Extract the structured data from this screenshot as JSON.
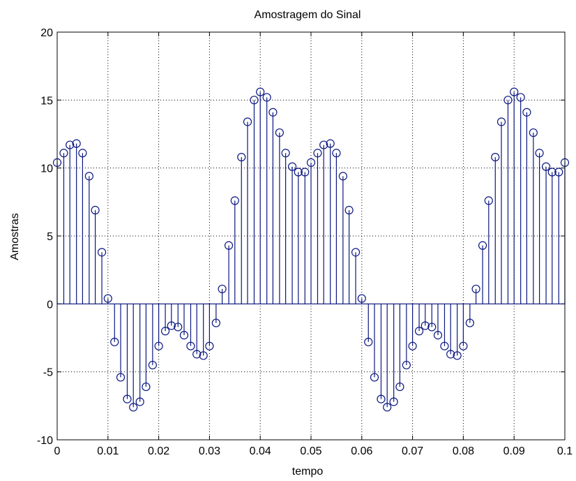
{
  "chart_data": {
    "type": "stem",
    "title": "Amostragem do Sinal",
    "xlabel": "tempo",
    "ylabel": "Amostras",
    "xlim": [
      0,
      0.1
    ],
    "ylim": [
      -10,
      20
    ],
    "xticks": [
      0,
      0.01,
      0.02,
      0.03,
      0.04,
      0.05,
      0.06,
      0.07,
      0.08,
      0.09,
      0.1
    ],
    "xtick_labels": [
      "0",
      "0.01",
      "0.02",
      "0.03",
      "0.04",
      "0.05",
      "0.06",
      "0.07",
      "0.08",
      "0.09",
      "0.1"
    ],
    "yticks": [
      -10,
      -5,
      0,
      5,
      10,
      15,
      20
    ],
    "ytick_labels": [
      "-10",
      "-5",
      "0",
      "5",
      "10",
      "15",
      "20"
    ],
    "grid": true,
    "line_color": "#0b1780",
    "marker": "circle",
    "x": [
      0,
      0.0013,
      0.0025,
      0.0038,
      0.005,
      0.0063,
      0.0075,
      0.0088,
      0.01,
      0.0113,
      0.0125,
      0.0138,
      0.015,
      0.0163,
      0.0175,
      0.0188,
      0.02,
      0.0213,
      0.0225,
      0.0238,
      0.025,
      0.0263,
      0.0275,
      0.0288,
      0.03,
      0.0313,
      0.0325,
      0.0338,
      0.035,
      0.0363,
      0.0375,
      0.0388,
      0.04,
      0.0413,
      0.0425,
      0.0438,
      0.045,
      0.0463,
      0.0475,
      0.0488,
      0.05,
      0.0513,
      0.0525,
      0.0538,
      0.055,
      0.0563,
      0.0575,
      0.0588,
      0.06,
      0.0613,
      0.0625,
      0.0638,
      0.065,
      0.0663,
      0.0675,
      0.0688,
      0.07,
      0.0713,
      0.0725,
      0.0738,
      0.075,
      0.0763,
      0.0775,
      0.0788,
      0.08,
      0.0813,
      0.0825,
      0.0838,
      0.085,
      0.0863,
      0.0875,
      0.0888,
      0.09,
      0.0913,
      0.0925,
      0.0938,
      0.095,
      0.0963,
      0.0975,
      0.0988,
      0.1
    ],
    "y": [
      10.4,
      11.1,
      11.7,
      11.8,
      11.1,
      9.4,
      6.9,
      3.8,
      0.4,
      -2.8,
      -5.4,
      -7.0,
      -7.6,
      -7.2,
      -6.1,
      -4.5,
      -3.1,
      -2.0,
      -1.6,
      -1.7,
      -2.3,
      -3.1,
      -3.7,
      -3.8,
      -3.1,
      -1.4,
      1.1,
      4.3,
      7.6,
      10.8,
      13.4,
      15.0,
      15.6,
      15.2,
      14.1,
      12.6,
      11.1,
      10.1,
      9.7,
      9.7,
      10.4,
      11.1,
      11.7,
      11.8,
      11.1,
      9.4,
      6.9,
      3.8,
      0.4,
      -2.8,
      -5.4,
      -7.0,
      -7.6,
      -7.2,
      -6.1,
      -4.5,
      -3.1,
      -2.0,
      -1.6,
      -1.7,
      -2.3,
      -3.1,
      -3.7,
      -3.8,
      -3.1,
      -1.4,
      1.1,
      4.3,
      7.6,
      10.8,
      13.4,
      15.0,
      15.6,
      15.2,
      14.1,
      12.6,
      11.1,
      10.1,
      9.7,
      9.7,
      10.4
    ]
  }
}
